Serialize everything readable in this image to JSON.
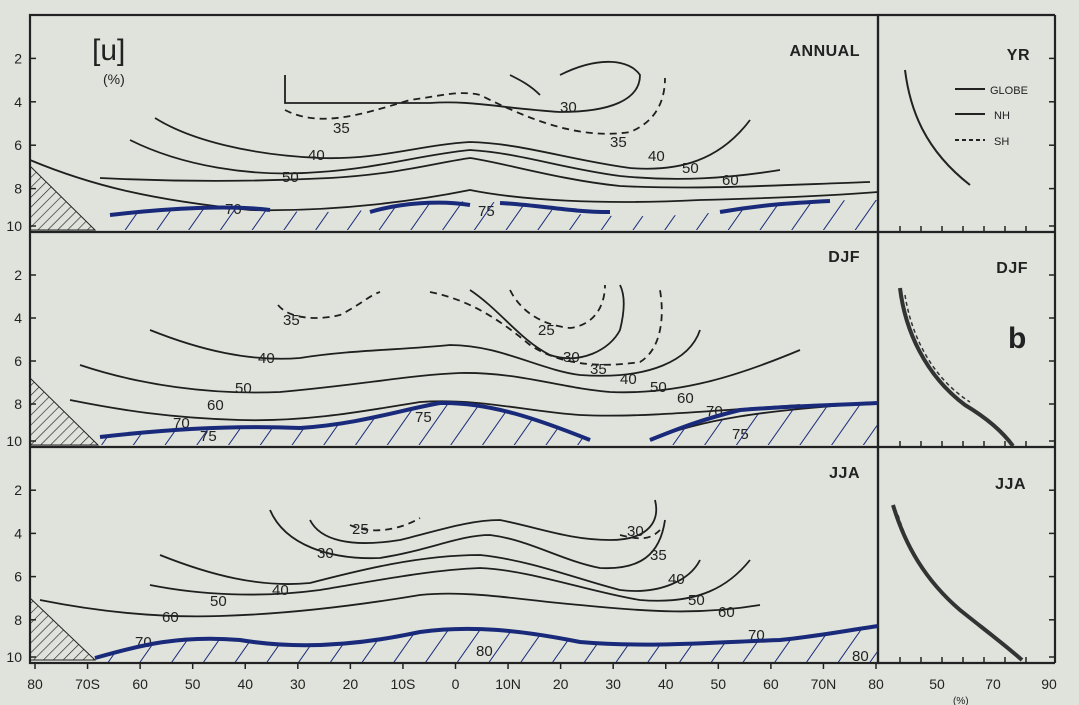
{
  "chart_data": {
    "type": "contour",
    "variable_label": "[u]",
    "unit_label": "(%)",
    "panel_letter": "b",
    "x_ticks": [
      "80",
      "70S",
      "60",
      "50",
      "40",
      "30",
      "20",
      "10S",
      "0",
      "10N",
      "20",
      "30",
      "40",
      "50",
      "60",
      "70N",
      "80"
    ],
    "y_ticks": [
      "2",
      "4",
      "6",
      "8",
      "10"
    ],
    "profile_x_ticks": [
      "50",
      "70",
      "90"
    ],
    "profile_x_unit": "(%)",
    "profile_legend": [
      "GLOBE",
      "NH",
      "SH"
    ],
    "panels": [
      {
        "name": "ANNUAL",
        "profile_name": "YR",
        "contour_labels": [
          "30",
          "35",
          "35",
          "40",
          "40",
          "50",
          "50",
          "60",
          "70",
          "75"
        ]
      },
      {
        "name": "DJF",
        "profile_name": "DJF",
        "contour_labels": [
          "25",
          "30",
          "35",
          "35",
          "40",
          "40",
          "50",
          "50",
          "60",
          "60",
          "70",
          "70",
          "75",
          "75",
          "75"
        ]
      },
      {
        "name": "JJA",
        "profile_name": "JJA",
        "contour_labels": [
          "25",
          "30",
          "30",
          "35",
          "40",
          "40",
          "50",
          "50",
          "60",
          "60",
          "70",
          "70",
          "80",
          "80"
        ]
      }
    ]
  }
}
